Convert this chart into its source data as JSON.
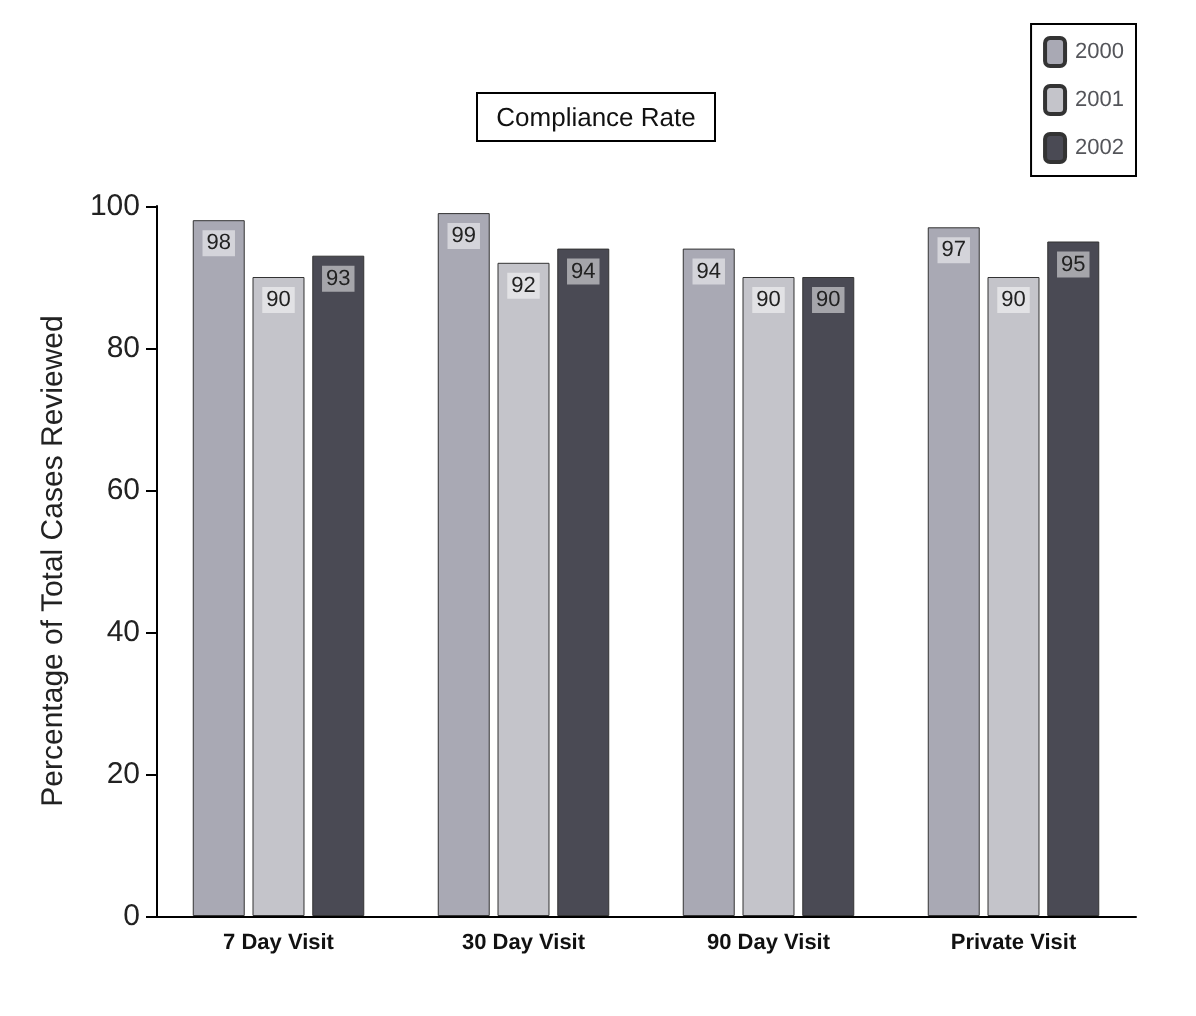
{
  "chart_data": {
    "type": "bar",
    "title": "Compliance Rate",
    "ylabel": "Percentage of Total Cases Reviewed",
    "categories": [
      "7 Day Visit",
      "30 Day Visit",
      "90 Day Visit",
      "Private Visit"
    ],
    "series": [
      {
        "name": "2000",
        "color": "#a9a9b4",
        "values": [
          98,
          99,
          94,
          97
        ]
      },
      {
        "name": "2001",
        "color": "#c4c4ca",
        "values": [
          90,
          92,
          90,
          90
        ]
      },
      {
        "name": "2002",
        "color": "#4a4a54",
        "values": [
          93,
          94,
          90,
          95
        ]
      }
    ],
    "ylim": [
      0,
      100
    ],
    "yticks": [
      0,
      20,
      40,
      60,
      80,
      100
    ],
    "grid": false,
    "legend": "top right",
    "data_labels": true
  }
}
